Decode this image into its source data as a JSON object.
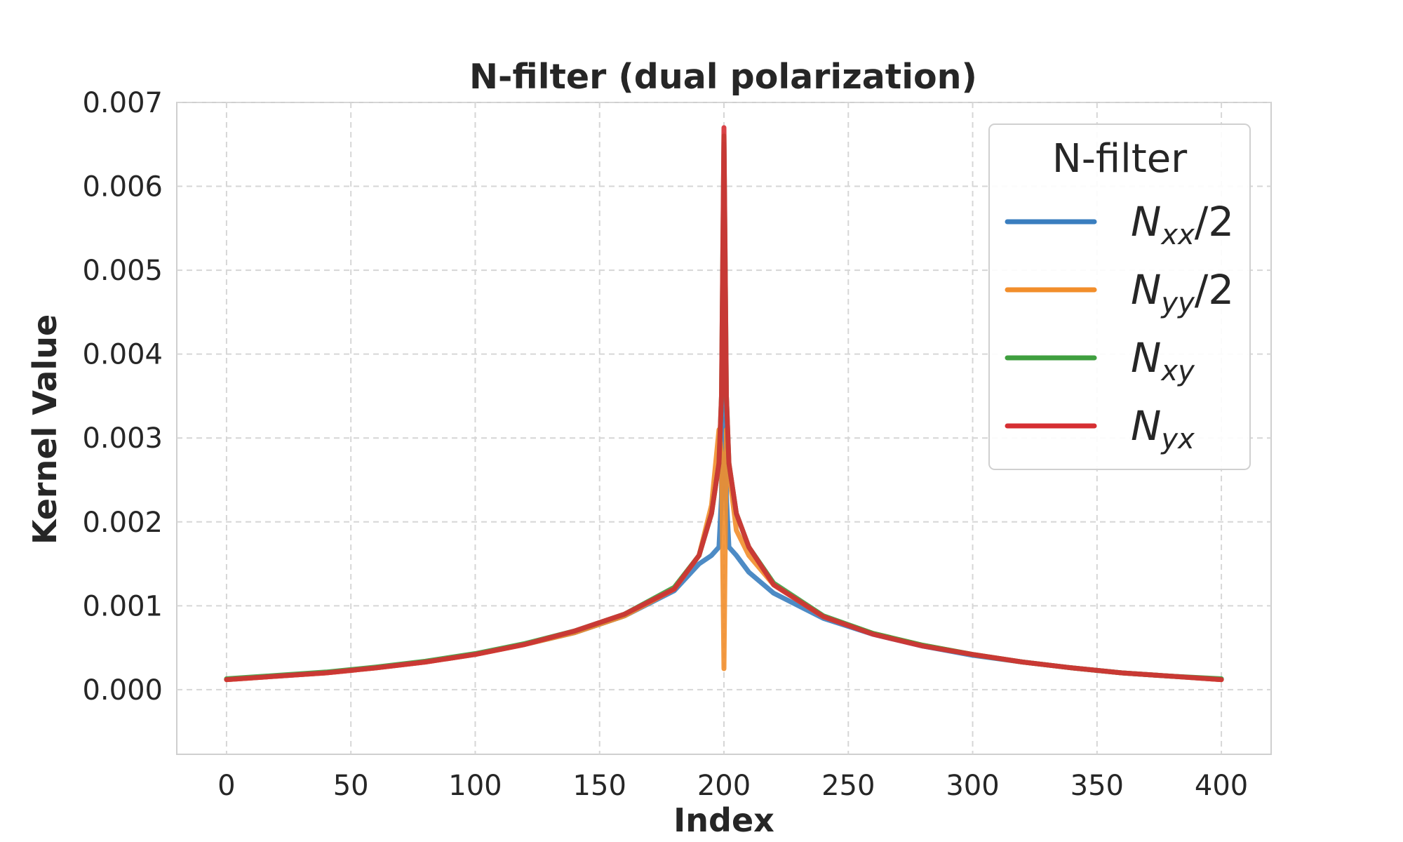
{
  "chart_data": {
    "type": "line",
    "title": "N-filter (dual polarization)",
    "xlabel": "Index",
    "ylabel": "Kernel Value",
    "xlim": [
      -20,
      420
    ],
    "ylim": [
      -0.00077,
      0.007
    ],
    "xticks": [
      0,
      50,
      100,
      150,
      200,
      250,
      300,
      350,
      400
    ],
    "xtick_labels": [
      "0",
      "50",
      "100",
      "150",
      "200",
      "250",
      "300",
      "350",
      "400"
    ],
    "yticks": [
      0,
      0.001,
      0.002,
      0.003,
      0.004,
      0.005,
      0.006,
      0.007
    ],
    "ytick_labels": [
      "0.000",
      "0.001",
      "0.002",
      "0.003",
      "0.004",
      "0.005",
      "0.006",
      "0.007"
    ],
    "grid": true,
    "grid_style": "dashed",
    "legend": {
      "title": "N-filter",
      "placement": "top-right",
      "entries": [
        {
          "base": "N",
          "sub": "xx",
          "suffix": "/2"
        },
        {
          "base": "N",
          "sub": "yy",
          "suffix": "/2"
        },
        {
          "base": "N",
          "sub": "xy",
          "suffix": ""
        },
        {
          "base": "N",
          "sub": "yx",
          "suffix": ""
        }
      ]
    },
    "series": [
      {
        "name": "N_xx/2",
        "color": "#3a7ebf",
        "x": [
          0,
          20,
          40,
          60,
          80,
          100,
          120,
          140,
          160,
          180,
          190,
          195,
          198,
          199,
          200,
          201,
          202,
          205,
          210,
          220,
          240,
          260,
          280,
          300,
          320,
          340,
          360,
          380,
          400
        ],
        "y": [
          0.00012,
          0.00016,
          0.0002,
          0.00026,
          0.00033,
          0.00042,
          0.00054,
          0.00068,
          0.00088,
          0.00118,
          0.0015,
          0.0016,
          0.0017,
          0.0023,
          0.0065,
          0.0023,
          0.0017,
          0.0016,
          0.0014,
          0.00115,
          0.00085,
          0.00066,
          0.00052,
          0.00041,
          0.00033,
          0.00026,
          0.0002,
          0.00016,
          0.00012
        ]
      },
      {
        "name": "N_yy/2",
        "color": "#f28e2b",
        "x": [
          0,
          20,
          40,
          60,
          80,
          100,
          120,
          140,
          160,
          180,
          190,
          195,
          198,
          199,
          200,
          201,
          202,
          205,
          210,
          220,
          240,
          260,
          280,
          300,
          320,
          340,
          360,
          380,
          400
        ],
        "y": [
          0.00012,
          0.00016,
          0.0002,
          0.00026,
          0.00033,
          0.00042,
          0.00054,
          0.00068,
          0.00088,
          0.0012,
          0.0016,
          0.0022,
          0.0031,
          0.0028,
          0.00025,
          0.0031,
          0.0026,
          0.0019,
          0.0016,
          0.00125,
          0.00087,
          0.00067,
          0.00053,
          0.00042,
          0.00033,
          0.00026,
          0.0002,
          0.00016,
          0.00012
        ]
      },
      {
        "name": "N_xy",
        "color": "#3f9f3f",
        "x": [
          0,
          20,
          40,
          60,
          80,
          100,
          120,
          140,
          160,
          180,
          190,
          195,
          198,
          199,
          200,
          201,
          202,
          205,
          210,
          220,
          240,
          260,
          280,
          300,
          320,
          340,
          360,
          380,
          400
        ],
        "y": [
          0.00013,
          0.00017,
          0.00021,
          0.00027,
          0.00034,
          0.00043,
          0.00055,
          0.0007,
          0.0009,
          0.00122,
          0.0016,
          0.0021,
          0.0027,
          0.0035,
          0.0066,
          0.0035,
          0.0027,
          0.0021,
          0.0017,
          0.00127,
          0.00088,
          0.00067,
          0.00053,
          0.00042,
          0.00033,
          0.00026,
          0.0002,
          0.00016,
          0.00013
        ]
      },
      {
        "name": "N_yx",
        "color": "#d62f33",
        "x": [
          0,
          20,
          40,
          60,
          80,
          100,
          120,
          140,
          160,
          180,
          190,
          195,
          198,
          199,
          200,
          201,
          202,
          205,
          210,
          220,
          240,
          260,
          280,
          300,
          320,
          340,
          360,
          380,
          400
        ],
        "y": [
          0.00012,
          0.00016,
          0.0002,
          0.00026,
          0.00033,
          0.00042,
          0.00054,
          0.0007,
          0.0009,
          0.0012,
          0.0016,
          0.0021,
          0.0027,
          0.0035,
          0.0067,
          0.0035,
          0.0027,
          0.0021,
          0.0017,
          0.00125,
          0.00087,
          0.00066,
          0.00052,
          0.00042,
          0.00033,
          0.00026,
          0.0002,
          0.00016,
          0.00012
        ]
      }
    ]
  }
}
